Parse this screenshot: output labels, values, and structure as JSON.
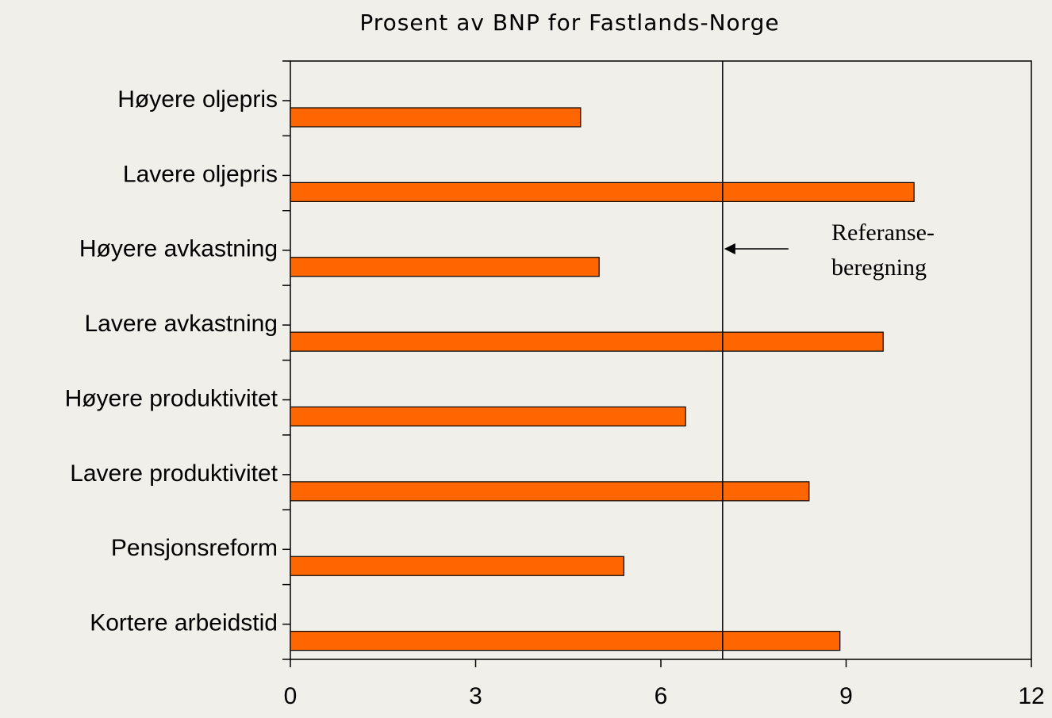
{
  "chart_data": {
    "type": "barh",
    "title": "Prosent av BNP for Fastlands-Norge",
    "categories": [
      "Høyere oljepris",
      "Lavere oljepris",
      "Høyere avkastning",
      "Lavere avkastning",
      "Høyere produktivitet",
      "Lavere produktivitet",
      "Pensjonsreform",
      "Kortere arbeidstid"
    ],
    "values": [
      4.7,
      10.1,
      5.0,
      9.6,
      6.4,
      8.4,
      5.4,
      8.9
    ],
    "color": "#ff6600",
    "xlim": [
      0,
      12
    ],
    "xticks": [
      0,
      3,
      6,
      9,
      12
    ],
    "reference_line": {
      "value": 7.0,
      "label": [
        "Referanse-",
        "beregning"
      ]
    }
  }
}
